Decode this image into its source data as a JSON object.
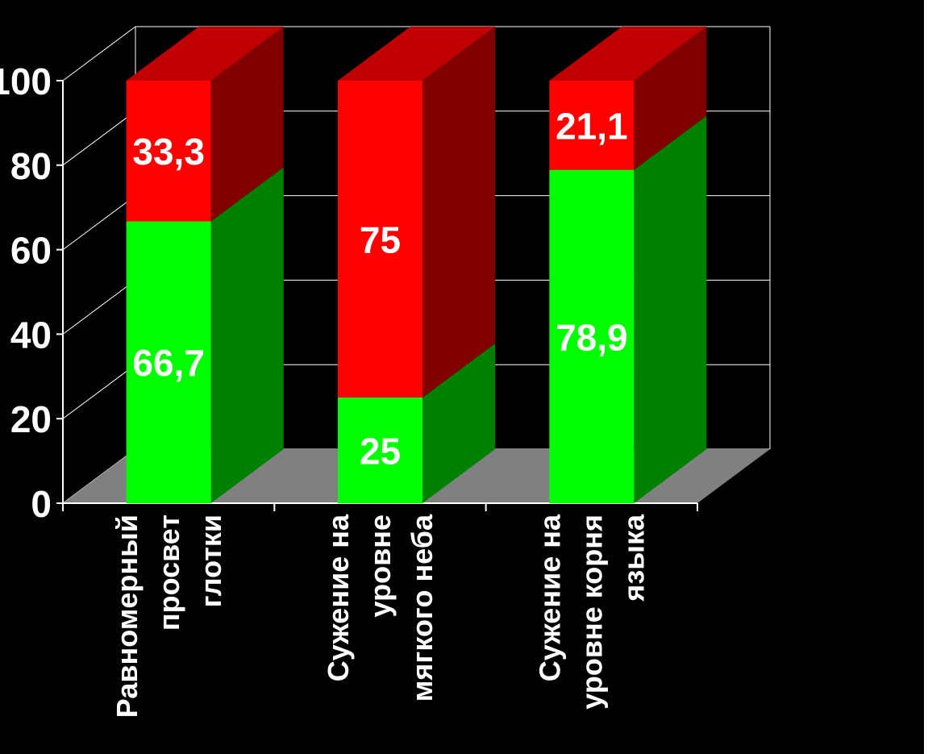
{
  "chart_data": {
    "type": "bar",
    "stacked": true,
    "three_d": true,
    "categories": [
      [
        "Равномерный",
        "просвет",
        "глотки"
      ],
      [
        "Сужение на",
        "уровне",
        "мягкого неба"
      ],
      [
        "Сужение на",
        "уровне корня",
        "языка"
      ]
    ],
    "series": [
      {
        "values": [
          66.7,
          25,
          78.9
        ],
        "labels": [
          "66,7",
          "25",
          "78,9"
        ],
        "color": "#00ff00",
        "side_color": "#008000",
        "top_color": "#00b000"
      },
      {
        "values": [
          33.3,
          75,
          21.1
        ],
        "labels": [
          "33,3",
          "75",
          "21,1"
        ],
        "color": "#ff0000",
        "side_color": "#800000",
        "top_color": "#c00000"
      }
    ],
    "y_ticks": [
      "0",
      "20",
      "40",
      "60",
      "80",
      "100"
    ],
    "ylim": [
      0,
      100
    ],
    "grid": true,
    "background": "#000000",
    "floor_color": "#808080",
    "text_color": "#ffffff"
  }
}
